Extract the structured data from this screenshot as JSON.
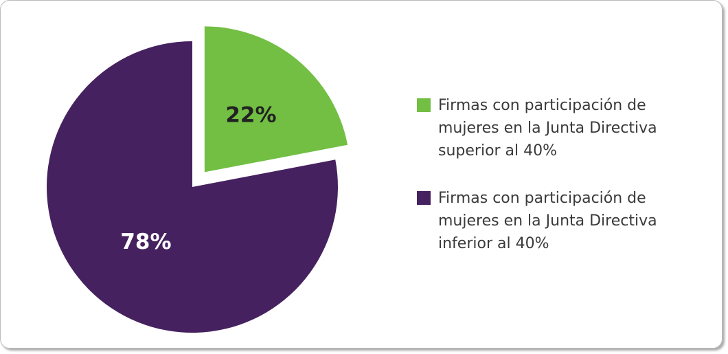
{
  "chart_data": {
    "type": "pie",
    "categories": [
      "Firmas con participación de mujeres en la Junta Directiva superior al 40%",
      "Firmas con participación de mujeres en la Junta Directiva inferior al 40%"
    ],
    "values": [
      22,
      78
    ],
    "value_labels": [
      "22%",
      "78%"
    ],
    "colors": [
      "#72bf44",
      "#46215f"
    ],
    "legend": "right"
  }
}
